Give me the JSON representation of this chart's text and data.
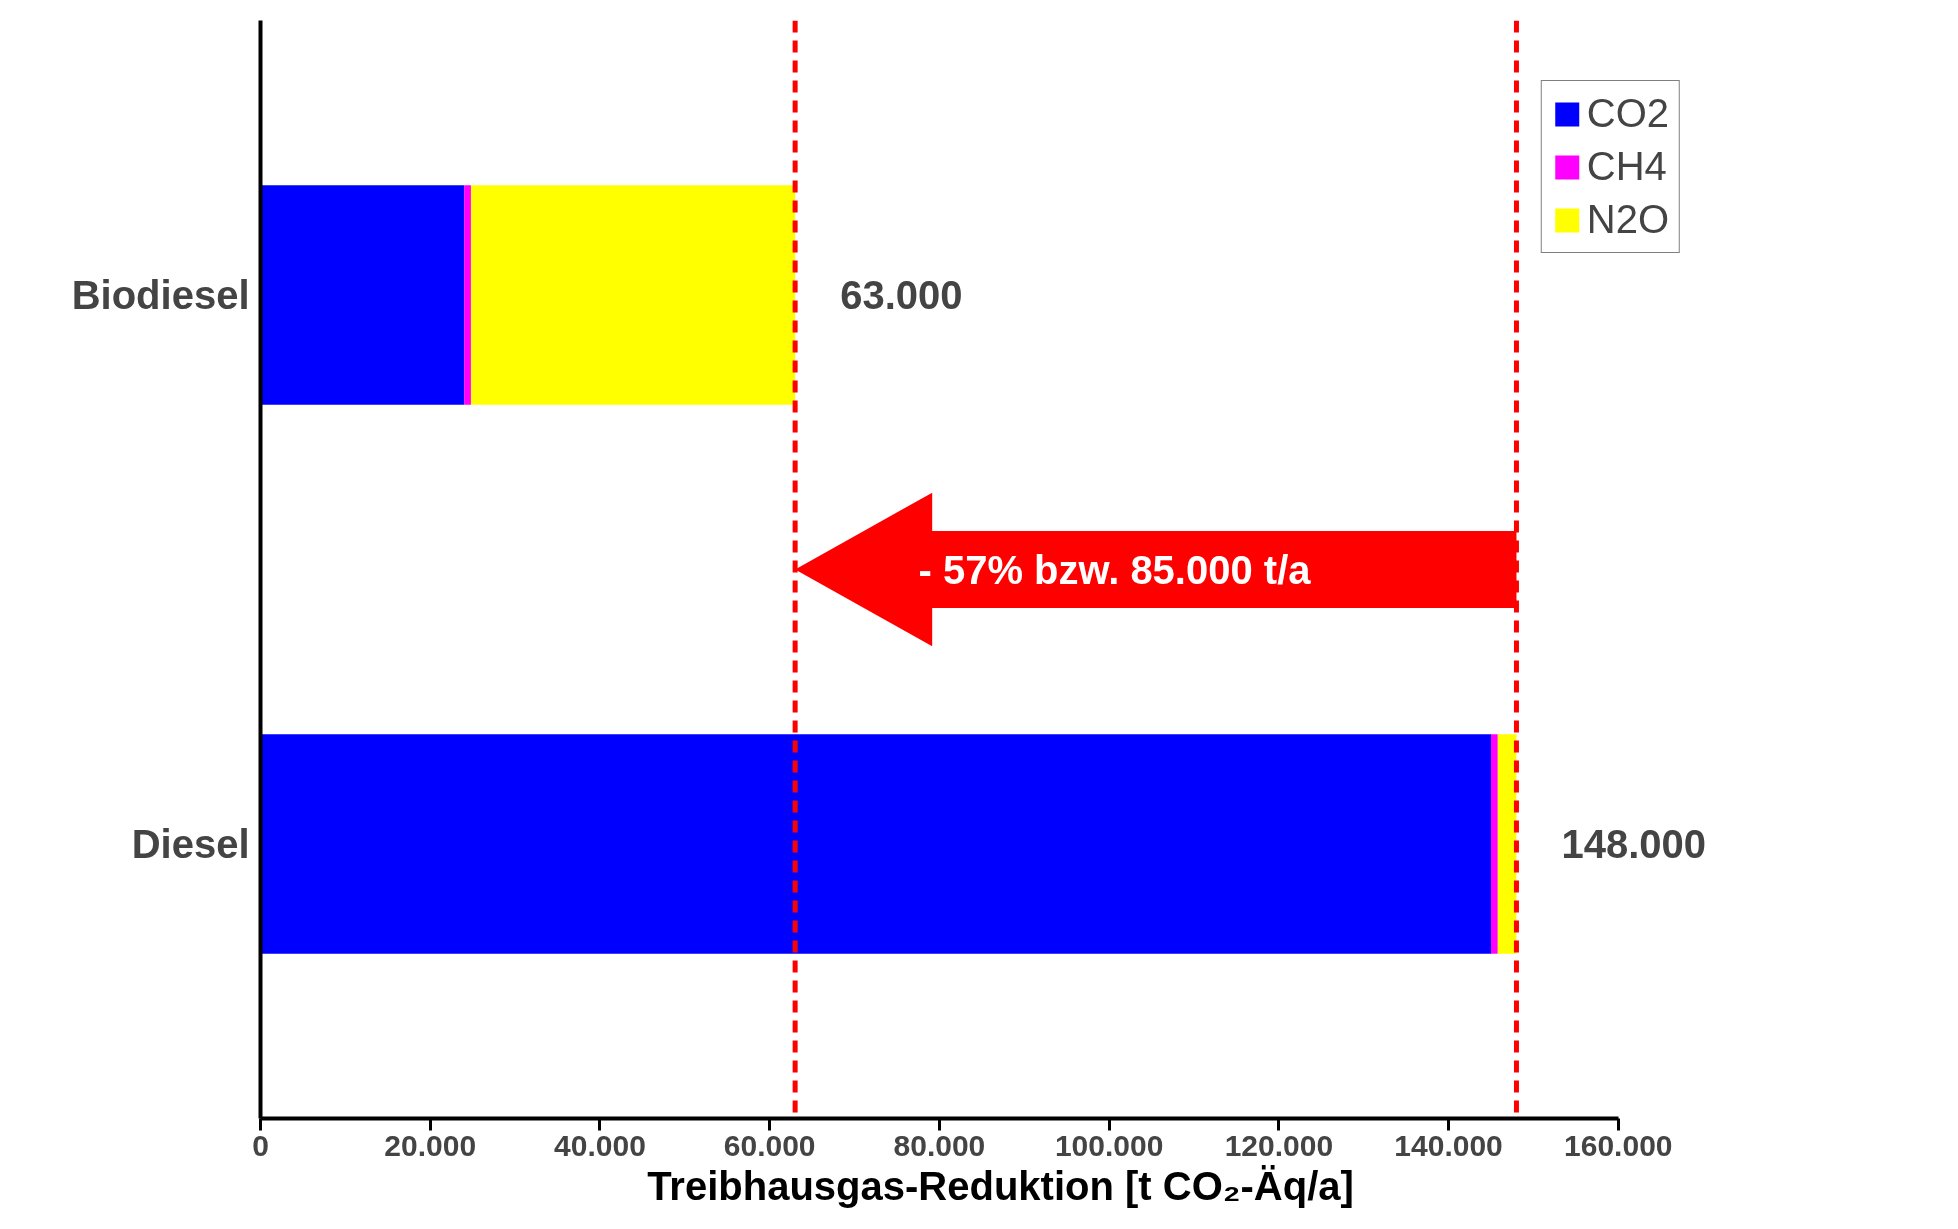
{
  "chart_data": {
    "type": "bar",
    "orientation": "horizontal",
    "stacked": true,
    "categories": [
      "Biodiesel",
      "Diesel"
    ],
    "series": [
      {
        "name": "CO2",
        "color": "#0000ff",
        "values": [
          24000,
          145000
        ]
      },
      {
        "name": "CH4",
        "color": "#ff00ff",
        "values": [
          800,
          800
        ]
      },
      {
        "name": "N2O",
        "color": "#ffff00",
        "values": [
          38200,
          2200
        ]
      }
    ],
    "totals": [
      "63.000",
      "148.000"
    ],
    "xlabel": "Treibhausgas-Reduktion [t CO₂-Äq/a]",
    "xlim": [
      0,
      160000
    ],
    "xticks": [
      0,
      {
        "value": 20000,
        "label": "20.000"
      },
      {
        "value": 40000,
        "label": "40.000"
      },
      {
        "value": 60000,
        "label": "60.000"
      },
      {
        "value": 80000,
        "label": "80.000"
      },
      {
        "value": 100000,
        "label": "100.000"
      },
      {
        "value": 120000,
        "label": "120.000"
      },
      {
        "value": 140000,
        "label": "140.000"
      },
      {
        "value": 160000,
        "label": "160.000"
      }
    ],
    "ref_lines": [
      {
        "axis": "x",
        "value": 63000,
        "color": "#ff0000",
        "line_style": "dashed"
      },
      {
        "axis": "x",
        "value": 148000,
        "color": "#ff0000",
        "line_style": "dashed"
      }
    ],
    "annotations": [
      "- 57% bzw. 85.000 t/a"
    ],
    "grid": false,
    "legend": "top right"
  }
}
